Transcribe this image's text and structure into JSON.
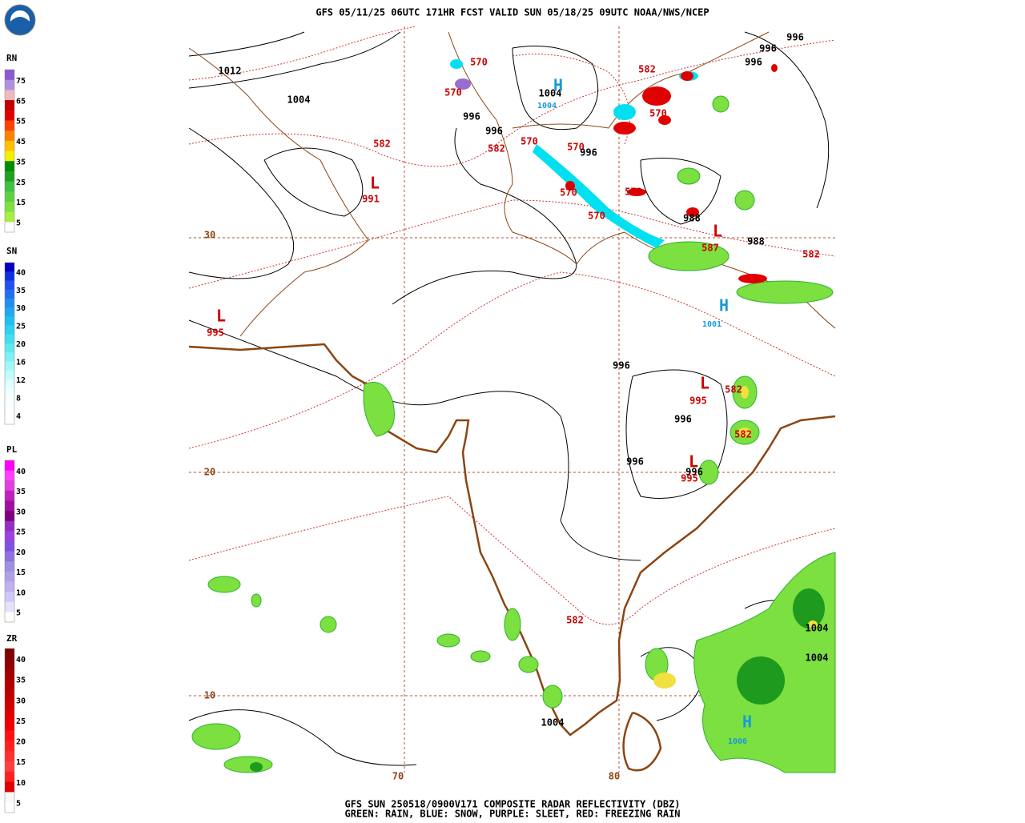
{
  "header": {
    "title": "GFS 05/11/25 06UTC 171HR FCST VALID SUN 05/18/25 09UTC NOAA/NWS/NCEP"
  },
  "footer": {
    "line1": "GFS SUN 250518/0900V171 COMPOSITE RADAR REFLECTIVITY (DBZ)",
    "line2": "GREEN: RAIN, BLUE: SNOW, PURPLE: SLEET, RED: FREEZING RAIN"
  },
  "legend": [
    {
      "name": "RN",
      "labels": [
        "75",
        "65",
        "55",
        "45",
        "35",
        "25",
        "15",
        "5"
      ],
      "colors": [
        "#8a5ad0",
        "#b090e0",
        "#f0b8c0",
        "#c00000",
        "#e00000",
        "#ff4000",
        "#ff8000",
        "#ffc000",
        "#f0f000",
        "#008c00",
        "#20a020",
        "#40c040",
        "#60d040",
        "#80e040",
        "#a8f040",
        "#ffffff"
      ]
    },
    {
      "name": "SN",
      "labels": [
        "40",
        "35",
        "30",
        "25",
        "20",
        "16",
        "12",
        "8",
        "4"
      ],
      "colors": [
        "#0000c0",
        "#1030e0",
        "#2050f0",
        "#2070f0",
        "#2090f0",
        "#20a8f0",
        "#20c0f0",
        "#30d0f0",
        "#40e0f0",
        "#60e8f0",
        "#80f0f8",
        "#a0f8f8",
        "#c0fcfc",
        "#e0fefe",
        "#f0ffff",
        "#f8ffff",
        "#ffffff",
        "#ffffff"
      ]
    },
    {
      "name": "PL",
      "labels": [
        "40",
        "35",
        "30",
        "25",
        "20",
        "15",
        "10",
        "5"
      ],
      "colors": [
        "#ff00ff",
        "#ff40ff",
        "#e040e0",
        "#c020c0",
        "#a010a0",
        "#800080",
        "#9030c0",
        "#a040e0",
        "#8050e0",
        "#9070e0",
        "#a090e0",
        "#b0a0e8",
        "#c0b0f0",
        "#d0c8f8",
        "#e8e0fc",
        "#ffffff"
      ]
    },
    {
      "name": "ZR",
      "labels": [
        "40",
        "35",
        "30",
        "25",
        "20",
        "15",
        "10",
        "5"
      ],
      "colors": [
        "#800000",
        "#900000",
        "#a00000",
        "#b00000",
        "#c00000",
        "#d00000",
        "#e00000",
        "#f00000",
        "#ff1010",
        "#ff2020",
        "#ff3030",
        "#ff4040",
        "#ff2020",
        "#e00000",
        "#f8f8f8",
        "#ffffff"
      ]
    }
  ],
  "map_labels": [
    {
      "text": "1012",
      "color": "#000000"
    },
    {
      "text": "1004",
      "color": "#000000"
    },
    {
      "text": "996",
      "color": "#000000"
    },
    {
      "text": "996",
      "color": "#000000"
    },
    {
      "text": "582",
      "color": "#cc0000"
    },
    {
      "text": "570",
      "color": "#cc0000"
    },
    {
      "text": "570",
      "color": "#cc0000"
    },
    {
      "text": "582",
      "color": "#cc0000"
    },
    {
      "text": "570",
      "color": "#cc0000"
    },
    {
      "text": "570",
      "color": "#cc0000"
    },
    {
      "text": "996",
      "color": "#000000"
    },
    {
      "text": "1004",
      "color": "#000000"
    },
    {
      "text": "1004",
      "color": "#1a9ad6"
    },
    {
      "text": "582",
      "color": "#cc0000"
    },
    {
      "text": "570",
      "color": "#cc0000"
    },
    {
      "text": "996",
      "color": "#000000"
    },
    {
      "text": "996",
      "color": "#000000"
    },
    {
      "text": "996",
      "color": "#000000"
    },
    {
      "text": "991",
      "color": "#cc0000"
    },
    {
      "text": "570",
      "color": "#cc0000"
    },
    {
      "text": "570",
      "color": "#cc0000"
    },
    {
      "text": "570",
      "color": "#cc0000"
    },
    {
      "text": "988",
      "color": "#000000"
    },
    {
      "text": "587",
      "color": "#cc0000"
    },
    {
      "text": "988",
      "color": "#000000"
    },
    {
      "text": "582",
      "color": "#cc0000"
    },
    {
      "text": "1001",
      "color": "#1a9ad6"
    },
    {
      "text": "995",
      "color": "#cc0000"
    },
    {
      "text": "996",
      "color": "#000000"
    },
    {
      "text": "582",
      "color": "#cc0000"
    },
    {
      "text": "995",
      "color": "#cc0000"
    },
    {
      "text": "996",
      "color": "#000000"
    },
    {
      "text": "582",
      "color": "#cc0000"
    },
    {
      "text": "996",
      "color": "#000000"
    },
    {
      "text": "996",
      "color": "#000000"
    },
    {
      "text": "995",
      "color": "#cc0000"
    },
    {
      "text": "582",
      "color": "#cc0000"
    },
    {
      "text": "1004",
      "color": "#000000"
    },
    {
      "text": "1004",
      "color": "#000000"
    },
    {
      "text": "1004",
      "color": "#000000"
    },
    {
      "text": "1006",
      "color": "#1a9ad6"
    },
    {
      "text": "30",
      "color": "#8b4513"
    },
    {
      "text": "20",
      "color": "#8b4513"
    },
    {
      "text": "10",
      "color": "#8b4513"
    },
    {
      "text": "70",
      "color": "#8b4513"
    },
    {
      "text": "80",
      "color": "#8b4513"
    },
    {
      "text": "H",
      "color": "#1a9ad6"
    },
    {
      "text": "L",
      "color": "#cc0000"
    },
    {
      "text": "L",
      "color": "#cc0000"
    },
    {
      "text": "H",
      "color": "#1a9ad6"
    },
    {
      "text": "L",
      "color": "#cc0000"
    },
    {
      "text": "L",
      "color": "#cc0000"
    },
    {
      "text": "L",
      "color": "#cc0000"
    },
    {
      "text": "H",
      "color": "#1a9ad6"
    }
  ]
}
